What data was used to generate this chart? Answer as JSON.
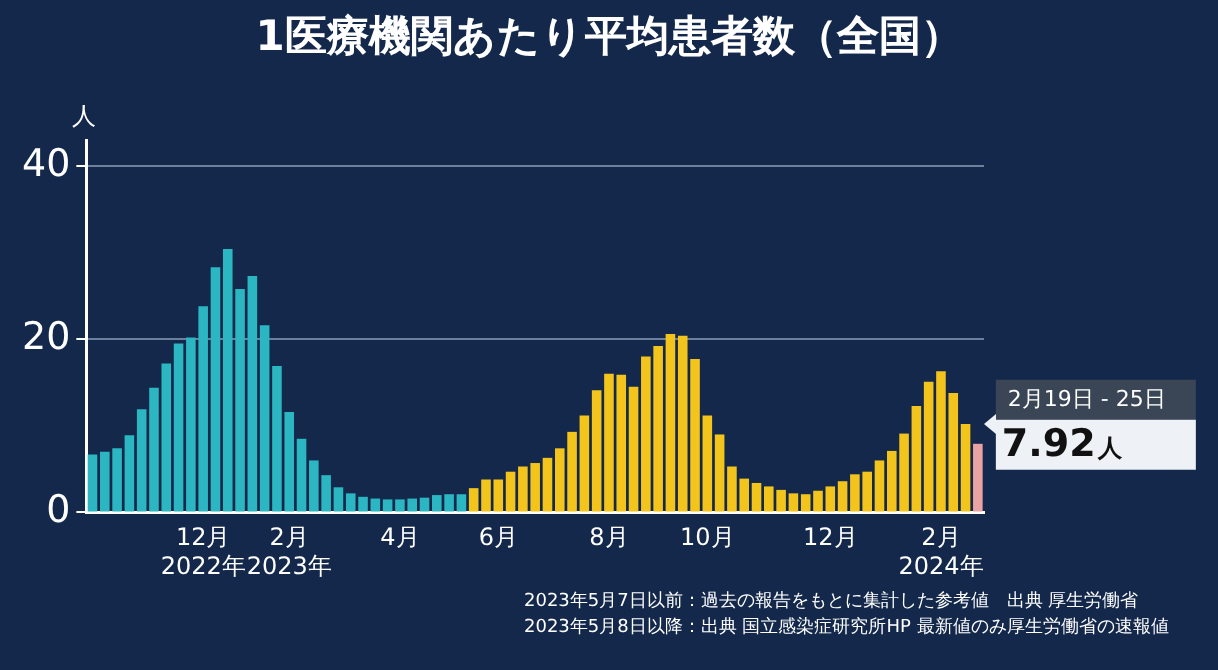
{
  "chart_data": {
    "type": "bar",
    "title": "1医療機関あたり平均患者数（全国）",
    "ylabel": "人",
    "categories": [
      null,
      null,
      null,
      null,
      null,
      null,
      null,
      null,
      null,
      "12月\n2022年",
      null,
      null,
      null,
      null,
      null,
      null,
      "2月\n2023年",
      null,
      null,
      null,
      null,
      null,
      null,
      null,
      null,
      "4月",
      null,
      null,
      null,
      null,
      null,
      null,
      null,
      "6月",
      null,
      null,
      null,
      null,
      null,
      null,
      null,
      null,
      "8月",
      null,
      null,
      null,
      null,
      null,
      null,
      null,
      "10月",
      null,
      null,
      null,
      null,
      null,
      null,
      null,
      null,
      null,
      "12月",
      null,
      null,
      null,
      null,
      null,
      null,
      null,
      null,
      "2月\n2024年",
      null,
      null,
      null
    ],
    "values": [
      6.7,
      7.0,
      7.4,
      8.9,
      11.9,
      14.4,
      17.2,
      19.5,
      20.2,
      23.8,
      28.3,
      30.4,
      25.8,
      27.3,
      21.6,
      16.9,
      11.6,
      8.5,
      6.0,
      4.3,
      2.9,
      2.2,
      1.8,
      1.6,
      1.5,
      1.5,
      1.6,
      1.7,
      2.0,
      2.1,
      2.1,
      2.8,
      3.8,
      3.8,
      4.7,
      5.3,
      5.7,
      6.3,
      7.4,
      9.3,
      11.2,
      14.1,
      16.0,
      15.9,
      14.5,
      18.0,
      19.2,
      20.6,
      20.4,
      17.7,
      11.2,
      9.0,
      5.3,
      3.9,
      3.4,
      3.0,
      2.6,
      2.2,
      2.1,
      2.5,
      3.0,
      3.6,
      4.4,
      4.7,
      6.0,
      7.1,
      9.1,
      12.3,
      15.1,
      16.3,
      13.8,
      10.2,
      7.92
    ],
    "colors": [
      "#2bb6c2",
      "#2bb6c2",
      "#2bb6c2",
      "#2bb6c2",
      "#2bb6c2",
      "#2bb6c2",
      "#2bb6c2",
      "#2bb6c2",
      "#2bb6c2",
      "#2bb6c2",
      "#2bb6c2",
      "#2bb6c2",
      "#2bb6c2",
      "#2bb6c2",
      "#2bb6c2",
      "#2bb6c2",
      "#2bb6c2",
      "#2bb6c2",
      "#2bb6c2",
      "#2bb6c2",
      "#2bb6c2",
      "#2bb6c2",
      "#2bb6c2",
      "#2bb6c2",
      "#2bb6c2",
      "#2bb6c2",
      "#2bb6c2",
      "#2bb6c2",
      "#2bb6c2",
      "#2bb6c2",
      "#2bb6c2",
      "#f3c41c",
      "#f3c41c",
      "#f3c41c",
      "#f3c41c",
      "#f3c41c",
      "#f3c41c",
      "#f3c41c",
      "#f3c41c",
      "#f3c41c",
      "#f3c41c",
      "#f3c41c",
      "#f3c41c",
      "#f3c41c",
      "#f3c41c",
      "#f3c41c",
      "#f3c41c",
      "#f3c41c",
      "#f3c41c",
      "#f3c41c",
      "#f3c41c",
      "#f3c41c",
      "#f3c41c",
      "#f3c41c",
      "#f3c41c",
      "#f3c41c",
      "#f3c41c",
      "#f3c41c",
      "#f3c41c",
      "#f3c41c",
      "#f3c41c",
      "#f3c41c",
      "#f3c41c",
      "#f3c41c",
      "#f3c41c",
      "#f3c41c",
      "#f3c41c",
      "#f3c41c",
      "#f3c41c",
      "#f3c41c",
      "#f3c41c",
      "#f3c41c",
      "#e9a3a3"
    ],
    "value_labels": [
      null,
      null,
      null,
      null,
      null,
      null,
      null,
      null,
      null,
      null,
      null,
      null,
      null,
      null,
      null,
      null,
      null,
      null,
      null,
      null,
      null,
      null,
      null,
      null,
      null,
      null,
      null,
      null,
      null,
      null,
      null,
      null,
      null,
      null,
      null,
      null,
      null,
      null,
      null,
      null,
      null,
      null,
      null,
      null,
      null,
      null,
      null,
      null,
      null,
      null,
      null,
      null,
      null,
      null,
      null,
      null,
      null,
      null,
      null,
      null,
      null,
      null,
      null,
      null,
      null,
      null,
      null,
      null,
      null,
      null,
      null,
      null,
      "7.92人"
    ],
    "annotations": [
      "2月19日 - 25日",
      "2023年5月7日以前：過去の報告をもとに集計した参考値　出典 厚生労働省",
      "2023年5月8日以降：出典 国立感染症研究所HP 最新値のみ厚生労働省の速報値"
    ],
    "ylim": [
      0,
      43
    ],
    "yticks": [
      0,
      20,
      40
    ],
    "grid": "y",
    "legend": false
  }
}
